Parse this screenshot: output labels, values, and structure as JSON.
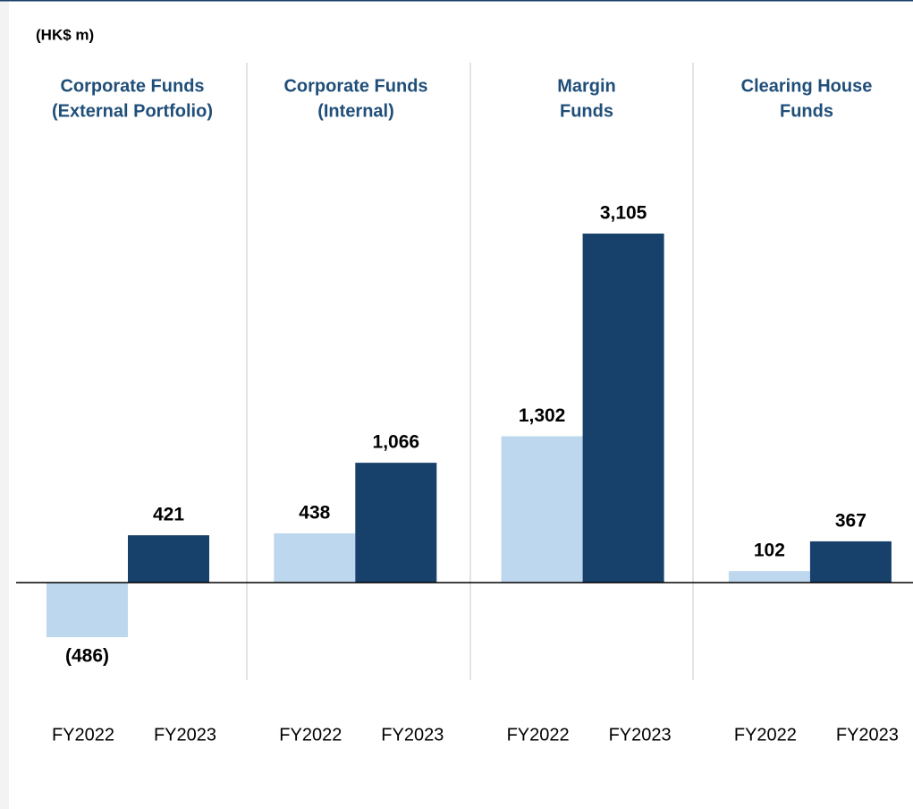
{
  "chart_data": {
    "type": "bar",
    "unit_label": "(HK$ m)",
    "ylim": [
      -1000,
      3500
    ],
    "colors": [
      "#bdd7ee",
      "#17406a"
    ],
    "groups": [
      {
        "title": [
          "Corporate Funds",
          "(External Portfolio)"
        ],
        "categories": [
          "FY2022",
          "FY2023"
        ],
        "values": [
          -486,
          421
        ],
        "value_labels": [
          "(486)",
          "421"
        ]
      },
      {
        "title": [
          "Corporate Funds",
          "(Internal)"
        ],
        "categories": [
          "FY2022",
          "FY2023"
        ],
        "values": [
          438,
          1066
        ],
        "value_labels": [
          "438",
          "1,066"
        ]
      },
      {
        "title": [
          "Margin",
          "Funds"
        ],
        "categories": [
          "FY2022",
          "FY2023"
        ],
        "values": [
          1302,
          3105
        ],
        "value_labels": [
          "1,302",
          "3,105"
        ]
      },
      {
        "title": [
          "Clearing House",
          "Funds"
        ],
        "categories": [
          "FY2022",
          "FY2023"
        ],
        "values": [
          102,
          367
        ],
        "value_labels": [
          "102",
          "367"
        ]
      }
    ]
  }
}
